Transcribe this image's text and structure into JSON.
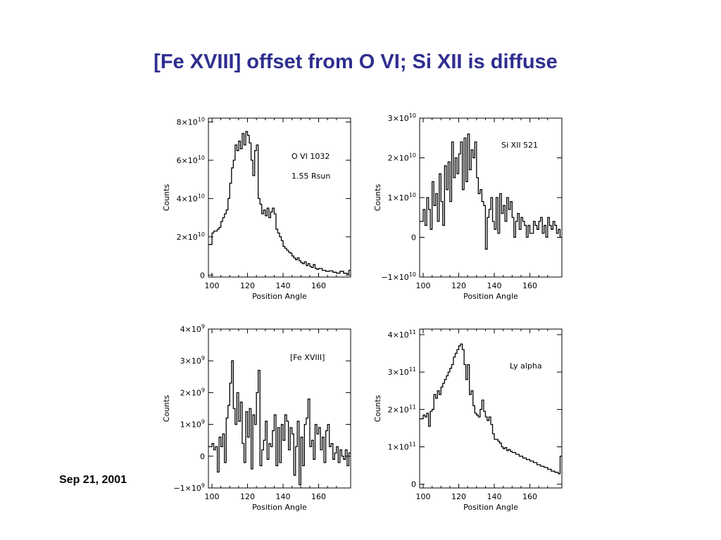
{
  "slide": {
    "title": "[Fe XVIII] offset from O VI;  Si XII is diffuse",
    "date": "Sep 21, 2001",
    "title_color": "#2e2e8f"
  },
  "chart_data": [
    {
      "type": "line",
      "step": true,
      "xlabel": "Position Angle",
      "ylabel": "Counts",
      "xlim": [
        98,
        178
      ],
      "ylim": [
        -1000000000.0,
        82000000000.0
      ],
      "xticks": [
        100,
        120,
        140,
        160
      ],
      "xtick_labels": [
        "100",
        "120",
        "140",
        "160"
      ],
      "ytick_values": [
        0,
        20000000000.0,
        40000000000.0,
        60000000000.0,
        80000000000.0
      ],
      "ytick_labels": [
        {
          "base": "0",
          "exp": ""
        },
        {
          "base": "2×10",
          "exp": "10"
        },
        {
          "base": "4×10",
          "exp": "10"
        },
        {
          "base": "6×10",
          "exp": "10"
        },
        {
          "base": "8×10",
          "exp": "10"
        }
      ],
      "annotations": [
        "O VI 1032",
        "1.55 Rsun"
      ],
      "series": [
        {
          "x": [
            98,
            100,
            101,
            102,
            103,
            104,
            105,
            106,
            107,
            108,
            109,
            110,
            111,
            112,
            113,
            114,
            115,
            116,
            117,
            118,
            119,
            120,
            121,
            122,
            123,
            124,
            125,
            126,
            127,
            128,
            129,
            130,
            131,
            132,
            133,
            134,
            135,
            136,
            137,
            138,
            139,
            140,
            141,
            142,
            143,
            144,
            145,
            146,
            147,
            148,
            149,
            150,
            151,
            152,
            153,
            154,
            155,
            156,
            157,
            158,
            159,
            160,
            162,
            164,
            166,
            168,
            170,
            172,
            174,
            176,
            177
          ],
          "values": [
            16000000000.0,
            22000000000.0,
            23000000000.0,
            23000000000.0,
            24000000000.0,
            25000000000.0,
            28000000000.0,
            30000000000.0,
            32000000000.0,
            34000000000.0,
            40000000000.0,
            48000000000.0,
            56000000000.0,
            60000000000.0,
            68000000000.0,
            65000000000.0,
            70000000000.0,
            66000000000.0,
            74000000000.0,
            68000000000.0,
            75000000000.0,
            73000000000.0,
            69000000000.0,
            60000000000.0,
            52000000000.0,
            65000000000.0,
            68000000000.0,
            40000000000.0,
            37000000000.0,
            32000000000.0,
            34000000000.0,
            31000000000.0,
            35000000000.0,
            30000000000.0,
            33000000000.0,
            35000000000.0,
            32000000000.0,
            24000000000.0,
            22000000000.0,
            20000000000.0,
            18000000000.0,
            15000000000.0,
            14000000000.0,
            13000000000.0,
            12000000000.0,
            11500000000.0,
            10000000000.0,
            9000000000.0,
            8000000000.0,
            9000000000.0,
            7500000000.0,
            6500000000.0,
            6000000000.0,
            7000000000.0,
            5000000000.0,
            6000000000.0,
            4500000000.0,
            4000000000.0,
            5500000000.0,
            3500000000.0,
            3000000000.0,
            3500000000.0,
            2500000000.0,
            2000000000.0,
            2200000000.0,
            1500000000.0,
            1000000000.0,
            2000000000.0,
            1000000000.0,
            600000000.0,
            2500000000.0
          ]
        }
      ]
    },
    {
      "type": "line",
      "step": true,
      "xlabel": "Position Angle",
      "ylabel": "Counts",
      "xlim": [
        98,
        178
      ],
      "ylim": [
        -10000000000.0,
        30000000000.0
      ],
      "xticks": [
        100,
        120,
        140,
        160
      ],
      "xtick_labels": [
        "100",
        "120",
        "140",
        "160"
      ],
      "ytick_values": [
        -10000000000.0,
        0,
        10000000000.0,
        20000000000.0,
        30000000000.0
      ],
      "ytick_labels": [
        {
          "base": "−1×10",
          "exp": "10"
        },
        {
          "base": "0",
          "exp": ""
        },
        {
          "base": "1×10",
          "exp": "10"
        },
        {
          "base": "2×10",
          "exp": "10"
        },
        {
          "base": "3×10",
          "exp": "10"
        }
      ],
      "annotations": [
        "Si XII 521"
      ],
      "series": [
        {
          "x": [
            98,
            100,
            101,
            102,
            103,
            104,
            105,
            106,
            107,
            108,
            109,
            110,
            111,
            112,
            113,
            114,
            115,
            116,
            117,
            118,
            119,
            120,
            121,
            122,
            123,
            124,
            125,
            126,
            127,
            128,
            129,
            130,
            131,
            132,
            133,
            134,
            135,
            136,
            137,
            138,
            139,
            140,
            141,
            142,
            143,
            144,
            145,
            146,
            147,
            148,
            149,
            150,
            151,
            152,
            153,
            154,
            155,
            156,
            157,
            158,
            159,
            160,
            161,
            162,
            163,
            164,
            165,
            166,
            167,
            168,
            169,
            170,
            171,
            172,
            173,
            174,
            175,
            176,
            177
          ],
          "values": [
            4000000000.0,
            7000000000.0,
            3000000000.0,
            10000000000.0,
            7000000000.0,
            2000000000.0,
            14000000000.0,
            8000000000.0,
            11000000000.0,
            4000000000.0,
            16000000000.0,
            9000000000.0,
            3000000000.0,
            18000000000.0,
            12000000000.0,
            19000000000.0,
            9000000000.0,
            24000000000.0,
            15000000000.0,
            20000000000.0,
            16000000000.0,
            21000000000.0,
            24000000000.0,
            12000000000.0,
            25000000000.0,
            14000000000.0,
            26000000000.0,
            17000000000.0,
            22000000000.0,
            20000000000.0,
            24000000000.0,
            15000000000.0,
            11000000000.0,
            12000000000.0,
            9000000000.0,
            8000000000.0,
            -3000000000.0,
            5000000000.0,
            7000000000.0,
            10000000000.0,
            4000000000.0,
            2000000000.0,
            10000000000.0,
            1000000000.0,
            11000000000.0,
            6000000000.0,
            8000000000.0,
            4000000000.0,
            10000000000.0,
            7000000000.0,
            9000000000.0,
            5000000000.0,
            0,
            4000000000.0,
            6000000000.0,
            2000000000.0,
            5000000000.0,
            4000000000.0,
            3000000000.0,
            0,
            3000000000.0,
            1000000000.0,
            1000000000.0,
            4000000000.0,
            3000000000.0,
            2000000000.0,
            4000000000.0,
            5000000000.0,
            1000000000.0,
            3000000000.0,
            0,
            5000000000.0,
            3000000000.0,
            2000000000.0,
            4000000000.0,
            3000000000.0,
            1000000000.0,
            2000000000.0,
            0
          ]
        }
      ]
    },
    {
      "type": "line",
      "step": true,
      "xlabel": "Position Angle",
      "ylabel": "Counts",
      "xlim": [
        98,
        178
      ],
      "ylim": [
        -1000000000.0,
        4000000000.0
      ],
      "xticks": [
        100,
        120,
        140,
        160
      ],
      "xtick_labels": [
        "100",
        "120",
        "140",
        "160"
      ],
      "ytick_values": [
        -1000000000.0,
        0,
        1000000000.0,
        2000000000.0,
        3000000000.0,
        4000000000.0
      ],
      "ytick_labels": [
        {
          "base": "−1×10",
          "exp": "9"
        },
        {
          "base": "0",
          "exp": ""
        },
        {
          "base": "1×10",
          "exp": "9"
        },
        {
          "base": "2×10",
          "exp": "9"
        },
        {
          "base": "3×10",
          "exp": "9"
        },
        {
          "base": "4×10",
          "exp": "9"
        }
      ],
      "annotations": [
        "[Fe XVIII]"
      ],
      "series": [
        {
          "x": [
            98,
            100,
            101,
            102,
            103,
            104,
            105,
            106,
            107,
            108,
            109,
            110,
            111,
            112,
            113,
            114,
            115,
            116,
            117,
            118,
            119,
            120,
            121,
            122,
            123,
            124,
            125,
            126,
            127,
            128,
            129,
            130,
            131,
            132,
            133,
            134,
            135,
            136,
            137,
            138,
            139,
            140,
            141,
            142,
            143,
            144,
            145,
            146,
            147,
            148,
            149,
            150,
            151,
            152,
            153,
            154,
            155,
            156,
            157,
            158,
            159,
            160,
            161,
            162,
            163,
            164,
            165,
            166,
            167,
            168,
            169,
            170,
            171,
            172,
            173,
            174,
            175,
            176,
            177
          ],
          "values": [
            300000000.0,
            400000000.0,
            200000000.0,
            300000000.0,
            -500000000.0,
            600000000.0,
            300000000.0,
            700000000.0,
            -200000000.0,
            1200000000.0,
            1600000000.0,
            2300000000.0,
            3000000000.0,
            1500000000.0,
            1000000000.0,
            2000000000.0,
            1100000000.0,
            1700000000.0,
            400000000.0,
            -200000000.0,
            1400000000.0,
            600000000.0,
            1500000000.0,
            -400000000.0,
            1300000000.0,
            1000000000.0,
            2000000000.0,
            2700000000.0,
            -300000000.0,
            200000000.0,
            500000000.0,
            1100000000.0,
            -100000000.0,
            400000000.0,
            300000000.0,
            800000000.0,
            1300000000.0,
            -300000000.0,
            900000000.0,
            -200000000.0,
            1000000000.0,
            500000000.0,
            1300000000.0,
            1100000000.0,
            200000000.0,
            900000000.0,
            700000000.0,
            -600000000.0,
            300000000.0,
            1100000000.0,
            -900000000.0,
            600000000.0,
            -300000000.0,
            1000000000.0,
            1200000000.0,
            1800000000.0,
            300000000.0,
            500000000.0,
            -100000000.0,
            1000000000.0,
            700000000.0,
            900000000.0,
            200000000.0,
            600000000.0,
            -200000000.0,
            800000000.0,
            1000000000.0,
            300000000.0,
            400000000.0,
            -100000000.0,
            100000000.0,
            300000000.0,
            -200000000.0,
            200000000.0,
            0,
            -100000000.0,
            200000000.0,
            -300000000.0,
            100000000.0
          ]
        }
      ]
    },
    {
      "type": "line",
      "step": true,
      "xlabel": "Position Angle",
      "ylabel": "Counts",
      "xlim": [
        98,
        178
      ],
      "ylim": [
        -10000000000.0,
        415000000000.0
      ],
      "xticks": [
        100,
        120,
        140,
        160
      ],
      "xtick_labels": [
        "100",
        "120",
        "140",
        "160"
      ],
      "ytick_values": [
        0,
        100000000000.0,
        200000000000.0,
        300000000000.0,
        400000000000.0
      ],
      "ytick_labels": [
        {
          "base": "0",
          "exp": ""
        },
        {
          "base": "1×10",
          "exp": "11"
        },
        {
          "base": "2×10",
          "exp": "11"
        },
        {
          "base": "3×10",
          "exp": "11"
        },
        {
          "base": "4×10",
          "exp": "11"
        }
      ],
      "annotations": [
        "Ly alpha"
      ],
      "series": [
        {
          "x": [
            98,
            100,
            101,
            102,
            103,
            104,
            105,
            106,
            107,
            108,
            109,
            110,
            111,
            112,
            113,
            114,
            115,
            116,
            117,
            118,
            119,
            120,
            121,
            122,
            123,
            124,
            125,
            126,
            127,
            128,
            129,
            130,
            131,
            132,
            133,
            134,
            135,
            136,
            137,
            138,
            139,
            140,
            141,
            142,
            143,
            144,
            145,
            146,
            147,
            148,
            149,
            150,
            152,
            154,
            156,
            158,
            160,
            162,
            164,
            166,
            168,
            170,
            172,
            174,
            176,
            177
          ],
          "values": [
            175000000000.0,
            185000000000.0,
            180000000000.0,
            190000000000.0,
            155000000000.0,
            195000000000.0,
            200000000000.0,
            240000000000.0,
            230000000000.0,
            250000000000.0,
            240000000000.0,
            260000000000.0,
            270000000000.0,
            280000000000.0,
            290000000000.0,
            300000000000.0,
            310000000000.0,
            320000000000.0,
            340000000000.0,
            350000000000.0,
            360000000000.0,
            370000000000.0,
            375000000000.0,
            360000000000.0,
            320000000000.0,
            280000000000.0,
            320000000000.0,
            240000000000.0,
            250000000000.0,
            210000000000.0,
            190000000000.0,
            185000000000.0,
            180000000000.0,
            200000000000.0,
            225000000000.0,
            195000000000.0,
            180000000000.0,
            170000000000.0,
            180000000000.0,
            160000000000.0,
            135000000000.0,
            120000000000.0,
            120000000000.0,
            115000000000.0,
            110000000000.0,
            100000000000.0,
            95000000000.0,
            98000000000.0,
            90000000000.0,
            93000000000.0,
            88000000000.0,
            85000000000.0,
            80000000000.0,
            75000000000.0,
            70000000000.0,
            66000000000.0,
            62000000000.0,
            58000000000.0,
            52000000000.0,
            48000000000.0,
            45000000000.0,
            40000000000.0,
            35000000000.0,
            32000000000.0,
            28000000000.0,
            75000000000.0
          ]
        }
      ]
    }
  ]
}
